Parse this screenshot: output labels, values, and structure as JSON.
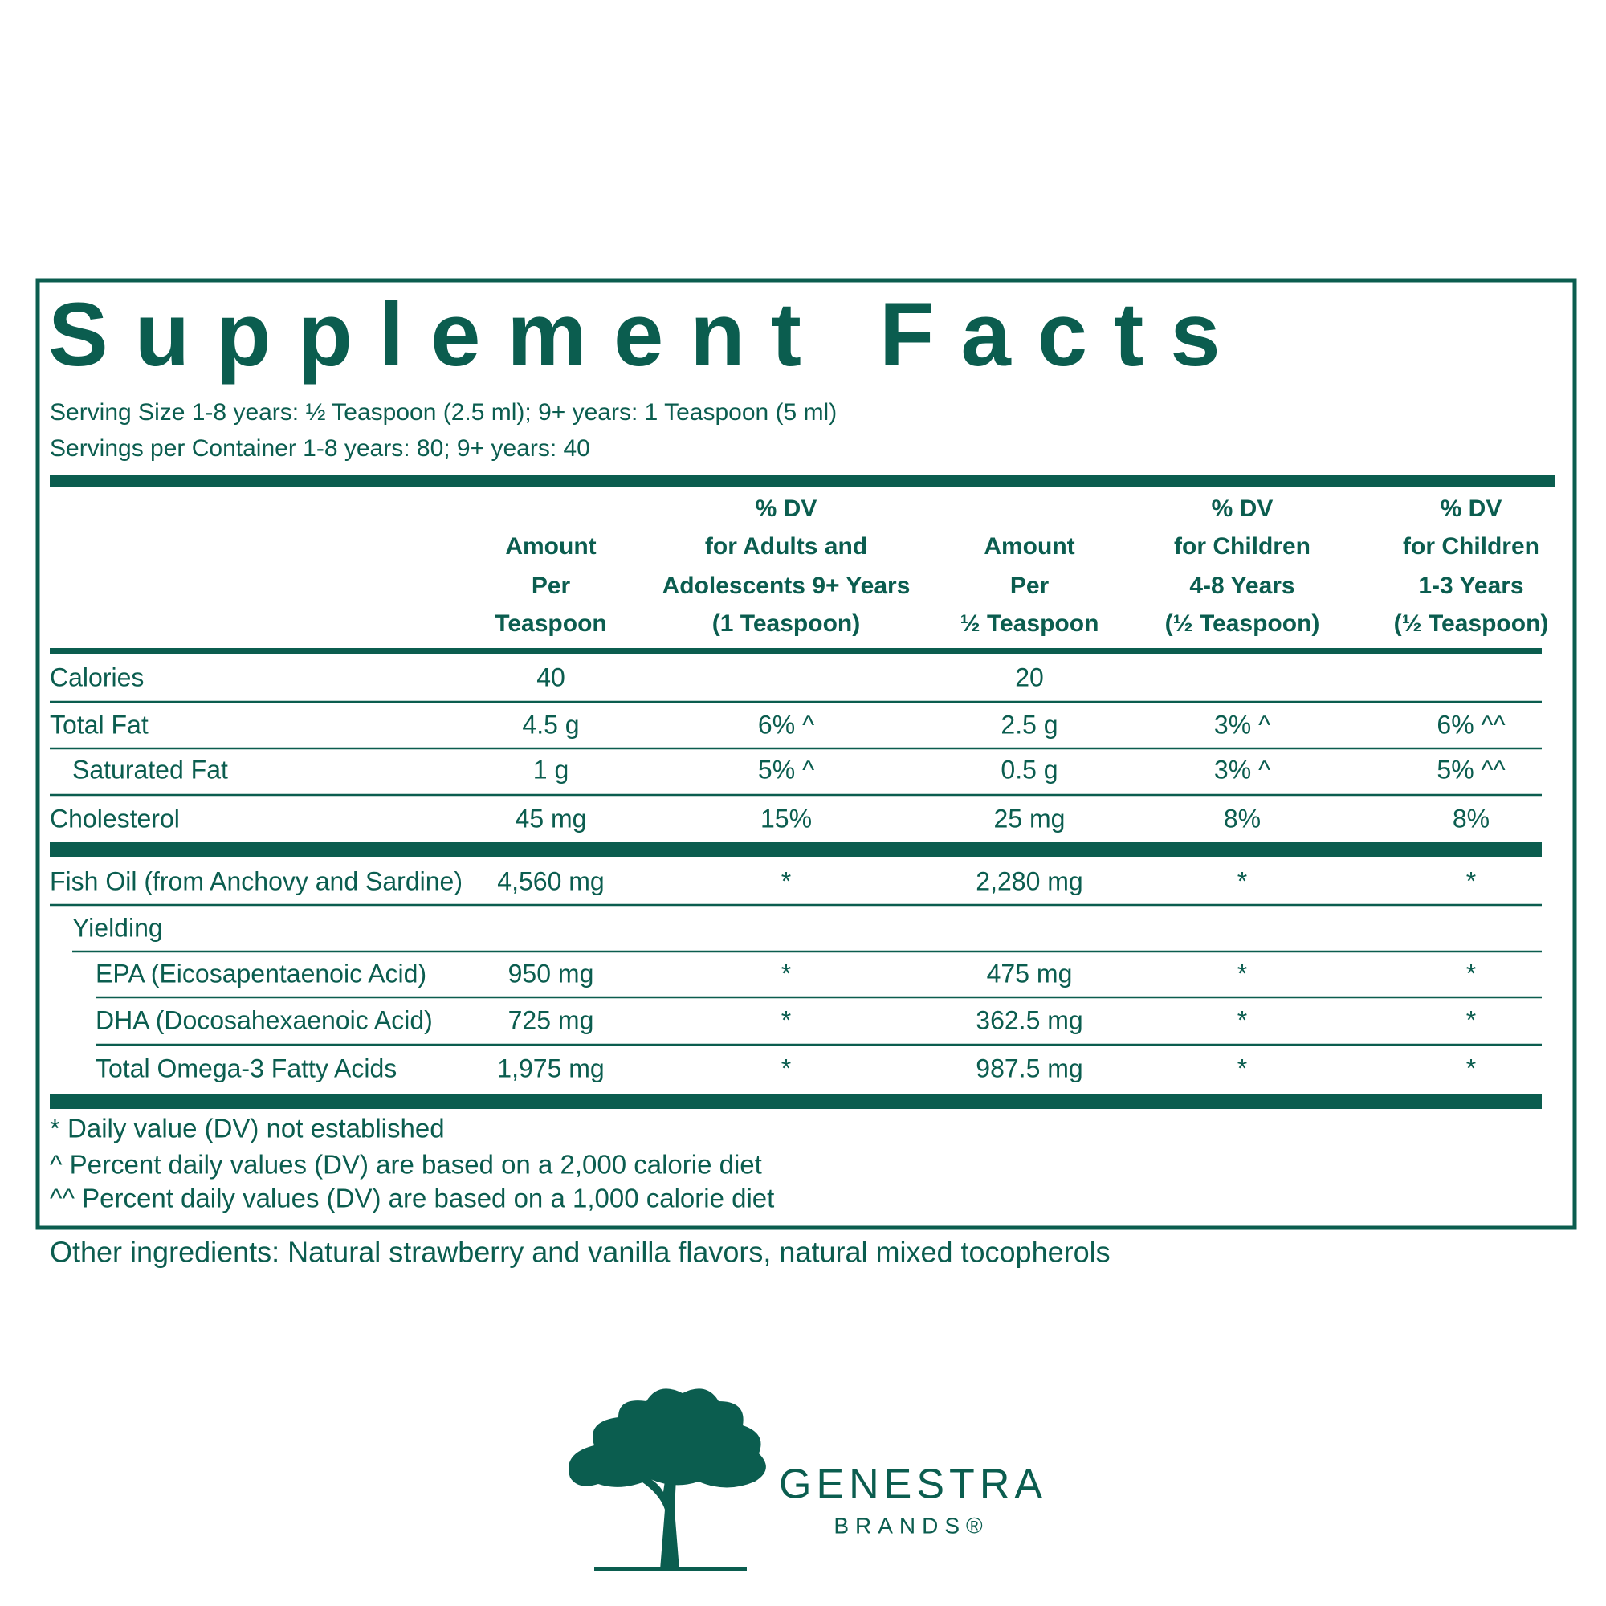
{
  "title": "Supplement Facts",
  "serving_size": "Serving Size 1-8 years: ½ Teaspoon (2.5 ml); 9+ years: 1 Teaspoon (5 ml)",
  "servings_per_container": "Servings per Container 1-8 years: 80; 9+ years: 40",
  "table": {
    "columns": [
      [
        "Amount",
        "Per",
        "Teaspoon"
      ],
      [
        "% DV",
        "for Adults and",
        "Adolescents 9+ Years",
        "(1 Teaspoon)"
      ],
      [
        "Amount",
        "Per",
        "½ Teaspoon"
      ],
      [
        "% DV",
        "for Children",
        "4-8 Years",
        "(½ Teaspoon)"
      ],
      [
        "% DV",
        "for Children",
        "1-3 Years",
        "(½ Teaspoon)"
      ]
    ],
    "rows": [
      {
        "label": "Calories",
        "cells": [
          "40",
          null,
          "20",
          null,
          null
        ]
      },
      {
        "label": "Total Fat",
        "cells": [
          "4.5 g",
          "6% ^",
          "2.5 g",
          "3% ^",
          "6% ^^"
        ]
      },
      {
        "label": "Saturated Fat",
        "cells": [
          "1 g",
          "5% ^",
          "0.5 g",
          "3% ^",
          "5% ^^"
        ]
      },
      {
        "label": "Cholesterol",
        "cells": [
          "45 mg",
          "15%",
          "25 mg",
          "8%",
          "8%"
        ]
      },
      {
        "label": "Fish Oil (from Anchovy and Sardine)",
        "cells": [
          "4,560 mg",
          "*",
          "2,280 mg",
          "*",
          "*"
        ]
      },
      {
        "label": "Yielding",
        "cells": [
          null,
          null,
          null,
          null,
          null
        ]
      },
      {
        "label": "EPA (Eicosapentaenoic Acid)",
        "cells": [
          "950 mg",
          "*",
          "475 mg",
          "*",
          "*"
        ]
      },
      {
        "label": "DHA (Docosahexaenoic Acid)",
        "cells": [
          "725 mg",
          "*",
          "362.5 mg",
          "*",
          "*"
        ]
      },
      {
        "label": "Total Omega-3 Fatty Acids",
        "cells": [
          "1,975 mg",
          "*",
          "987.5 mg",
          "*",
          "*"
        ]
      }
    ]
  },
  "footnotes": [
    "* Daily value (DV) not established",
    "^ Percent daily values (DV) are based on a 2,000 calorie diet",
    "^^ Percent daily values (DV) are based on a 1,000 calorie diet"
  ],
  "other_ingredients": "Other ingredients: Natural strawberry and vanilla flavors, natural mixed tocopherols",
  "brand": {
    "name": "GENESTRA",
    "sub": "BRANDS®"
  }
}
